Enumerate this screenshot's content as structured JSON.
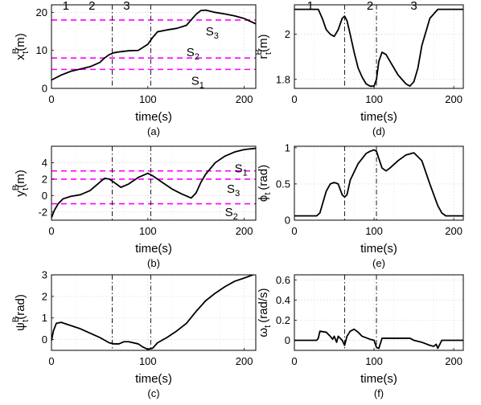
{
  "chart_data": [
    {
      "type": "line",
      "caption": "(a)",
      "xlabel": "time(s)",
      "ylabel": {
        "main": "x",
        "sub": "t",
        "sup": "B",
        "unit": "(m)"
      },
      "xlim": [
        0,
        212
      ],
      "ylim": [
        0,
        22
      ],
      "xticks": [
        0,
        100,
        200
      ],
      "yticks": [
        0,
        10,
        20
      ],
      "vlines": [
        63,
        103
      ],
      "top_labels": [
        {
          "x": 15,
          "text": "1"
        },
        {
          "x": 42,
          "text": "2"
        },
        {
          "x": 78,
          "text": "3"
        }
      ],
      "hlines": [
        {
          "y": 18,
          "label": "S",
          "sub": "3",
          "lx": 160,
          "ly": 15
        },
        {
          "y": 8,
          "label": "S",
          "sub": "2",
          "lx": 140,
          "ly": 9.5
        },
        {
          "y": 5,
          "label": "S",
          "sub": "1",
          "lx": 145,
          "ly": 2
        }
      ],
      "series": [
        {
          "x": [
            0,
            10,
            20,
            30,
            40,
            50,
            55,
            60,
            65,
            70,
            80,
            90,
            100,
            105,
            110,
            120,
            130,
            140,
            150,
            155,
            160,
            170,
            180,
            190,
            200,
            212
          ],
          "y": [
            2.2,
            3.5,
            4.5,
            5.1,
            5.7,
            6.8,
            8.0,
            8.9,
            9.4,
            9.6,
            9.9,
            10.0,
            11.6,
            13.4,
            14.9,
            15.4,
            15.8,
            16.6,
            19.5,
            20.5,
            20.6,
            20.0,
            19.6,
            19.1,
            18.4,
            17.0
          ]
        }
      ]
    },
    {
      "type": "line",
      "caption": "(b)",
      "xlabel": "time(s)",
      "ylabel": {
        "main": "y",
        "sub": "t",
        "sup": "B",
        "unit": "(m)"
      },
      "xlim": [
        0,
        212
      ],
      "ylim": [
        -3,
        6
      ],
      "xticks": [
        0,
        100,
        200
      ],
      "yticks": [
        -2,
        0,
        2,
        4
      ],
      "vlines": [
        63,
        103
      ],
      "hlines": [
        {
          "y": 3,
          "label": "S",
          "sub": "1",
          "lx": 190,
          "ly": 3.3
        },
        {
          "y": 2,
          "label": "S",
          "sub": "3",
          "lx": 182,
          "ly": 0.8
        },
        {
          "y": -1,
          "label": "S",
          "sub": "2",
          "lx": 180,
          "ly": -2.0
        }
      ],
      "series": [
        {
          "x": [
            0,
            3,
            7,
            12,
            20,
            30,
            40,
            50,
            55,
            60,
            65,
            72,
            80,
            90,
            100,
            105,
            115,
            125,
            135,
            145,
            150,
            155,
            160,
            170,
            180,
            190,
            200,
            212
          ],
          "y": [
            -2.7,
            -1.8,
            -1.0,
            -0.4,
            -0.1,
            0.1,
            0.6,
            1.6,
            2.1,
            2.0,
            1.6,
            1.0,
            1.4,
            2.2,
            2.7,
            2.4,
            1.6,
            0.8,
            0.2,
            -0.3,
            0.3,
            1.6,
            2.6,
            4.0,
            4.8,
            5.3,
            5.6,
            5.75
          ]
        }
      ]
    },
    {
      "type": "line",
      "caption": "(c)",
      "xlabel": "time(s)",
      "ylabel": {
        "main": "ψ",
        "sub": "t",
        "sup": "B",
        "unit": "(rad)"
      },
      "xlim": [
        0,
        212
      ],
      "ylim": [
        -0.5,
        3
      ],
      "xticks": [
        0,
        100,
        200
      ],
      "yticks": [
        0,
        1,
        2,
        3
      ],
      "vlines": [
        63,
        103
      ],
      "series": [
        {
          "x": [
            0,
            2,
            5,
            10,
            20,
            30,
            40,
            50,
            60,
            65,
            70,
            75,
            80,
            90,
            95,
            100,
            105,
            110,
            120,
            130,
            140,
            150,
            160,
            170,
            180,
            190,
            200,
            212
          ],
          "y": [
            -0.05,
            0.4,
            0.75,
            0.8,
            0.65,
            0.5,
            0.3,
            0.1,
            -0.15,
            -0.2,
            -0.2,
            -0.1,
            -0.1,
            -0.2,
            -0.35,
            -0.45,
            -0.4,
            -0.15,
            0.1,
            0.4,
            0.75,
            1.3,
            1.8,
            2.15,
            2.45,
            2.7,
            2.85,
            3.05
          ]
        }
      ]
    },
    {
      "type": "line",
      "caption": "(d)",
      "xlabel": "time(s)",
      "ylabel": {
        "main": "r",
        "sub": "t",
        "sup": "B",
        "unit": "(m)"
      },
      "xlim": [
        0,
        212
      ],
      "ylim": [
        1.76,
        2.13
      ],
      "xticks": [
        0,
        100,
        200
      ],
      "yticks": [
        1.8,
        2
      ],
      "yticklabels": [
        "1.8",
        "2"
      ],
      "vlines": [
        63,
        103
      ],
      "top_labels": [
        {
          "x": 20,
          "text": "1"
        },
        {
          "x": 95,
          "text": "2"
        },
        {
          "x": 150,
          "text": "3"
        }
      ],
      "series": [
        {
          "x": [
            0,
            20,
            30,
            35,
            40,
            45,
            50,
            55,
            60,
            63,
            66,
            70,
            75,
            80,
            85,
            90,
            95,
            100,
            103,
            106,
            110,
            115,
            120,
            130,
            140,
            145,
            150,
            155,
            160,
            170,
            180,
            212
          ],
          "y": [
            2.11,
            2.11,
            2.11,
            2.07,
            2.02,
            2.0,
            1.99,
            2.02,
            2.07,
            2.08,
            2.06,
            2.0,
            1.92,
            1.85,
            1.81,
            1.78,
            1.77,
            1.77,
            1.8,
            1.88,
            1.92,
            1.91,
            1.88,
            1.82,
            1.78,
            1.77,
            1.79,
            1.85,
            1.95,
            2.07,
            2.11,
            2.11
          ]
        }
      ]
    },
    {
      "type": "line",
      "caption": "(e)",
      "xlabel": "time(s)",
      "ylabel": {
        "main": "ϕ",
        "sub": "t",
        "unit": "(rad)"
      },
      "xlim": [
        0,
        212
      ],
      "ylim": [
        0,
        1.02
      ],
      "xticks": [
        0,
        100,
        200
      ],
      "yticks": [
        0,
        0.5,
        1
      ],
      "yticklabels": [
        "0",
        "0.5",
        "1"
      ],
      "vlines": [
        63,
        103
      ],
      "series": [
        {
          "x": [
            0,
            10,
            20,
            28,
            32,
            40,
            45,
            50,
            55,
            60,
            63,
            66,
            70,
            80,
            90,
            95,
            100,
            103,
            106,
            110,
            115,
            120,
            130,
            140,
            150,
            160,
            170,
            180,
            185,
            190,
            212
          ],
          "y": [
            0.06,
            0.06,
            0.06,
            0.06,
            0.1,
            0.4,
            0.5,
            0.52,
            0.5,
            0.35,
            0.32,
            0.35,
            0.55,
            0.78,
            0.92,
            0.95,
            0.97,
            0.95,
            0.85,
            0.72,
            0.68,
            0.72,
            0.82,
            0.9,
            0.93,
            0.82,
            0.5,
            0.2,
            0.1,
            0.06,
            0.06
          ]
        }
      ]
    },
    {
      "type": "line",
      "caption": "(f)",
      "xlabel": "time(s)",
      "ylabel": {
        "main": "ω",
        "sub": "t",
        "unit": "(rad/s)"
      },
      "xlim": [
        0,
        212
      ],
      "ylim": [
        -0.1,
        0.65
      ],
      "xticks": [
        0,
        100,
        200
      ],
      "yticks": [
        0,
        0.2,
        0.4,
        0.6
      ],
      "yticklabels": [
        "0",
        "0.2",
        "0.4",
        "0.6"
      ],
      "vlines": [
        63,
        103
      ],
      "series": [
        {
          "x": [
            0,
            28,
            30,
            32,
            40,
            45,
            48,
            50,
            53,
            55,
            60,
            63,
            66,
            70,
            75,
            80,
            85,
            95,
            100,
            103,
            106,
            110,
            115,
            125,
            145,
            150,
            160,
            170,
            175,
            178,
            180,
            185,
            212
          ],
          "y": [
            0,
            0,
            0.02,
            0.09,
            0.08,
            0.04,
            0.01,
            0.04,
            -0.02,
            0.04,
            0.0,
            -0.05,
            0.04,
            0.09,
            0.11,
            0.08,
            0.04,
            0.01,
            0.0,
            -0.07,
            -0.08,
            0.02,
            0.02,
            0.02,
            0.02,
            0.0,
            -0.02,
            -0.05,
            -0.06,
            -0.04,
            -0.08,
            0.0,
            0.0
          ]
        }
      ]
    }
  ]
}
